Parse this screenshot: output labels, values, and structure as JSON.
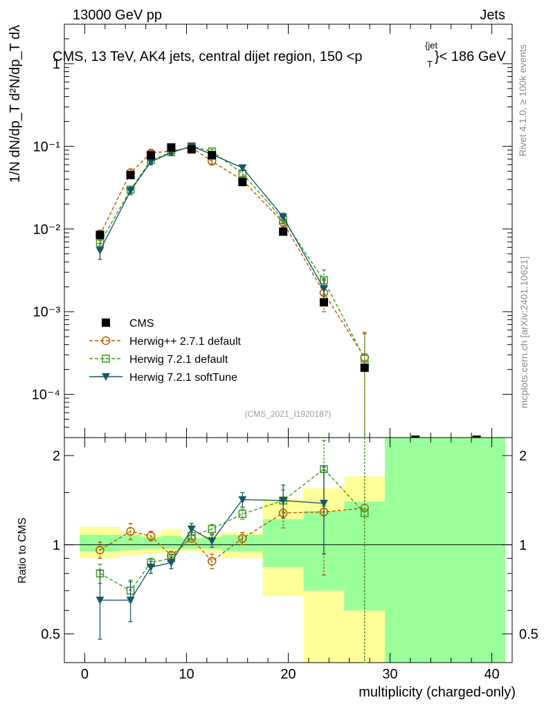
{
  "header": {
    "left": "13000 GeV pp",
    "right": "Jets",
    "title": "CMS, 13 TeV, AK4 jets, central dijet region, 150 <p",
    "title_sub": "T",
    "title_sup": "{jet",
    "title_end": "}< 186 GeV",
    "side_rivet": "Rivet 4.1.0, ≥ 100k events",
    "side_mcplots": "mcplots.cern.ch [arXiv:2401.10621]",
    "analysis_id": "(CMS_2021_I1920187)"
  },
  "ylabel_top": "1/N dN/dp_T d²N/dp_T dλ",
  "ylabel_bottom": "Ratio to CMS",
  "xlabel": "multiplicity (charged-only)",
  "colors": {
    "data": "#000000",
    "herwigpp": "#b35900",
    "herwig721": "#3a9a1a",
    "softtune": "#17566b",
    "band_yellow": "#ffff99",
    "band_green": "#99ff99"
  },
  "chart_data": [
    {
      "type": "scatter",
      "scale": "log",
      "title": "CMS, 13 TeV, AK4 jets, central dijet region, 150 < pT jet < 186 GeV",
      "xlim": [
        -2,
        42
      ],
      "ylim": [
        3e-05,
        3.0
      ],
      "yticks": [
        "10⁻⁴",
        "10⁻³",
        "10⁻²",
        "10⁻¹",
        "1"
      ],
      "series": [
        {
          "name": "CMS",
          "style": "data",
          "x": [
            1.5,
            4.5,
            6.5,
            8.5,
            10.5,
            12.5,
            15.5,
            19.5,
            23.5,
            27.5
          ],
          "y": [
            0.0085,
            0.045,
            0.078,
            0.097,
            0.092,
            0.078,
            0.037,
            0.0093,
            0.0013,
            0.00021
          ]
        },
        {
          "name": "Herwig++ 2.7.1 default",
          "style": "herwigpp",
          "x": [
            1.5,
            4.5,
            6.5,
            8.5,
            10.5,
            12.5,
            15.5,
            19.5,
            23.5,
            27.5
          ],
          "y": [
            0.0085,
            0.048,
            0.083,
            0.088,
            0.097,
            0.066,
            0.039,
            0.012,
            0.0017,
            0.00028
          ],
          "err": [
            0.0012,
            0.005,
            0.006,
            0.006,
            0.006,
            0.005,
            0.003,
            0.0015,
            0.0007,
            0.00028
          ]
        },
        {
          "name": "Herwig 7.2.1 default",
          "style": "herwig721",
          "x": [
            1.5,
            4.5,
            6.5,
            8.5,
            10.5,
            12.5,
            15.5,
            19.5,
            23.5,
            27.5
          ],
          "y": [
            0.0068,
            0.03,
            0.068,
            0.085,
            0.1,
            0.087,
            0.047,
            0.013,
            0.0024,
            0.00027
          ],
          "err": [
            0.001,
            0.003,
            0.005,
            0.006,
            0.006,
            0.005,
            0.004,
            0.0015,
            0.0008,
            0.00027
          ]
        },
        {
          "name": "Herwig 7.2.1 softTune",
          "style": "softtune",
          "x": [
            1.5,
            4.5,
            6.5,
            8.5,
            10.5,
            12.5,
            15.5,
            19.5,
            23.5
          ],
          "y": [
            0.0055,
            0.029,
            0.065,
            0.084,
            0.1,
            0.08,
            0.055,
            0.014,
            0.0019
          ],
          "err": [
            0.0012,
            0.003,
            0.005,
            0.006,
            0.006,
            0.005,
            0.004,
            0.0015,
            0.0006
          ]
        }
      ],
      "legend": [
        "CMS",
        "Herwig++ 2.7.1 default",
        "Herwig 7.2.1 default",
        "Herwig 7.2.1 softTune"
      ]
    },
    {
      "type": "line",
      "scale": "log",
      "ylim": [
        0.4,
        2.3
      ],
      "yticks": [
        0.5,
        1,
        2
      ],
      "xlim": [
        -2,
        42
      ],
      "xticks": [
        0,
        10,
        20,
        30,
        40
      ],
      "bands": [
        {
          "x0": -0.5,
          "x1": 3.5,
          "y_lo": 0.9,
          "y_hi": 1.15,
          "g_lo": 0.95,
          "g_hi": 1.08
        },
        {
          "x0": 3.5,
          "x1": 5.5,
          "y_lo": 0.92,
          "y_hi": 1.1,
          "g_lo": 0.96,
          "g_hi": 1.08
        },
        {
          "x0": 5.5,
          "x1": 7.5,
          "y_lo": 0.93,
          "y_hi": 1.08,
          "g_lo": 0.97,
          "g_hi": 1.06
        },
        {
          "x0": 7.5,
          "x1": 9.5,
          "y_lo": 0.94,
          "y_hi": 1.13,
          "g_lo": 0.97,
          "g_hi": 1.07
        },
        {
          "x0": 9.5,
          "x1": 11.5,
          "y_lo": 0.95,
          "y_hi": 1.06,
          "g_lo": 0.97,
          "g_hi": 1.05
        },
        {
          "x0": 11.5,
          "x1": 13.5,
          "y_lo": 0.94,
          "y_hi": 1.08,
          "g_lo": 0.97,
          "g_hi": 1.06
        },
        {
          "x0": 13.5,
          "x1": 17.5,
          "y_lo": 0.9,
          "y_hi": 1.1,
          "g_lo": 0.95,
          "g_hi": 1.08
        },
        {
          "x0": 17.5,
          "x1": 21.5,
          "y_lo": 0.67,
          "y_hi": 1.43,
          "g_lo": 0.84,
          "g_hi": 1.22
        },
        {
          "x0": 21.5,
          "x1": 25.5,
          "y_lo": 0.38,
          "y_hi": 1.55,
          "g_lo": 0.7,
          "g_hi": 1.3
        },
        {
          "x0": 25.5,
          "x1": 29.5,
          "y_lo": 0.3,
          "y_hi": 1.7,
          "g_lo": 0.6,
          "g_hi": 1.4
        },
        {
          "x0": 29.5,
          "x1": 41.5,
          "y_lo": 0.3,
          "y_hi": 3.0,
          "g_lo": 0.3,
          "g_hi": 3.0
        }
      ],
      "series": [
        {
          "name": "Herwig++ 2.7.1 default",
          "style": "herwigpp",
          "x": [
            1.5,
            4.5,
            6.5,
            8.5,
            10.5,
            12.5,
            15.5,
            19.5,
            23.5,
            27.5
          ],
          "y": [
            0.96,
            1.11,
            1.07,
            0.92,
            1.05,
            0.88,
            1.05,
            1.28,
            1.29,
            1.33
          ],
          "err": [
            0.06,
            0.07,
            0.04,
            0.03,
            0.03,
            0.05,
            0.05,
            0.14,
            0.5,
            1.3
          ]
        },
        {
          "name": "Herwig 7.2.1 default",
          "style": "herwig721",
          "x": [
            1.5,
            4.5,
            6.5,
            8.5,
            10.5,
            12.5,
            15.5,
            19.5,
            23.5,
            27.5
          ],
          "y": [
            0.8,
            0.7,
            0.87,
            0.9,
            1.07,
            1.13,
            1.27,
            1.41,
            1.8,
            1.28
          ],
          "err": [
            0.06,
            0.06,
            0.03,
            0.03,
            0.03,
            0.04,
            0.05,
            0.12,
            0.45,
            1.2
          ]
        },
        {
          "name": "Herwig 7.2.1 softTune",
          "style": "softtune",
          "x": [
            1.5,
            4.5,
            6.5,
            8.5,
            10.5,
            12.5,
            15.5,
            19.5,
            23.5
          ],
          "y": [
            0.65,
            0.65,
            0.84,
            0.87,
            1.13,
            1.03,
            1.42,
            1.41,
            1.38
          ],
          "err": [
            0.17,
            0.1,
            0.04,
            0.04,
            0.05,
            0.05,
            0.08,
            0.18,
            0.45
          ]
        }
      ]
    }
  ]
}
